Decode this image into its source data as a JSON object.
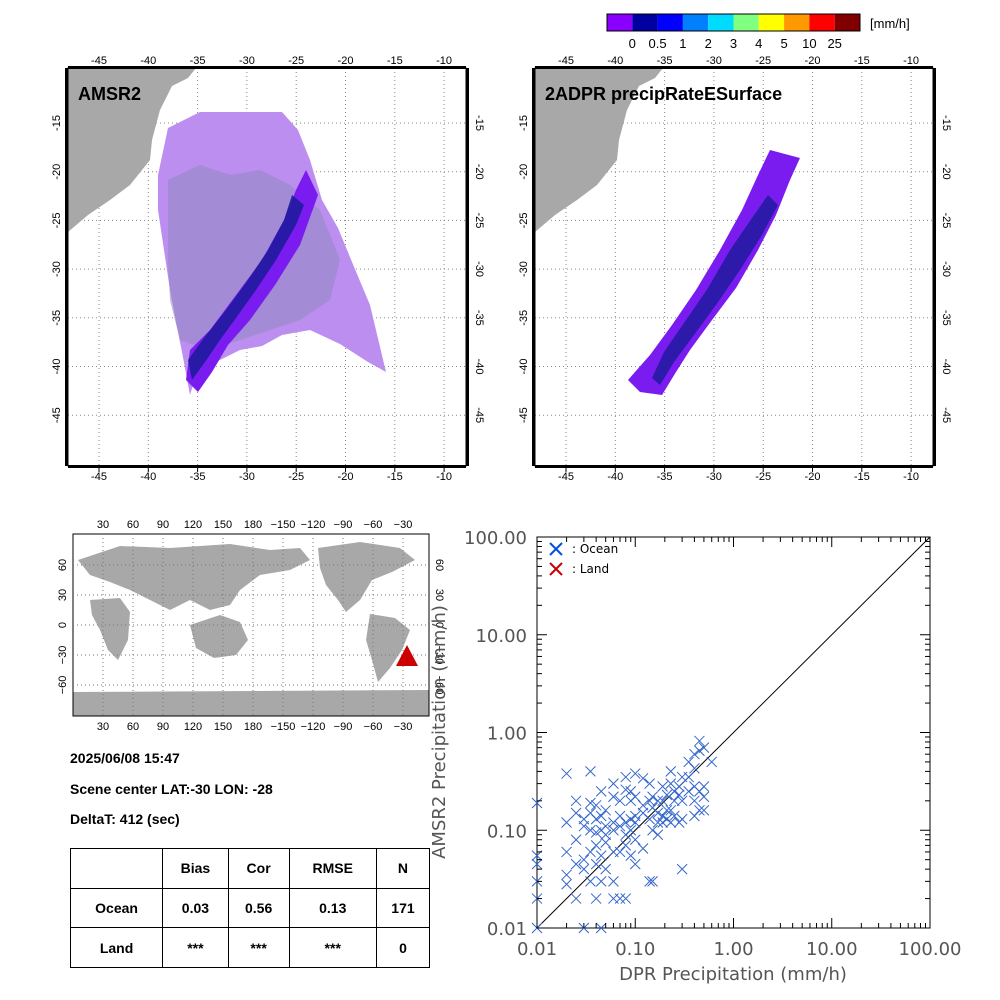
{
  "colorbar": {
    "unit": "[mm/h]",
    "colors": [
      "#8a00ff",
      "#0000a0",
      "#0000ff",
      "#0080ff",
      "#00dcff",
      "#80ff80",
      "#ffff00",
      "#ff9900",
      "#ff0000",
      "#800000"
    ],
    "labels": [
      "0",
      "0.5",
      "1",
      "2",
      "3",
      "4",
      "5",
      "10",
      "25"
    ]
  },
  "maps": {
    "amsr2_title": "AMSR2",
    "dpr_title": "2ADPR precipRateESurface",
    "lon_ticks": [
      "-45",
      "-40",
      "-35",
      "-30",
      "-25",
      "-20",
      "-15",
      "-10"
    ],
    "lat_ticks": [
      "-15",
      "-20",
      "-25",
      "-30",
      "-35",
      "-40",
      "-45"
    ],
    "land_color": "#a8a8a8"
  },
  "globe": {
    "top_lon_ticks": [
      "30",
      "60",
      "90",
      "120",
      "150",
      "180",
      "−150",
      "−120",
      "−90",
      "−60",
      "−30"
    ],
    "bottom_lon_ticks": [
      "30",
      "60",
      "90",
      "120",
      "150",
      "180",
      "−150",
      "−120",
      "−90",
      "−60",
      "−30"
    ],
    "lat_ticks": [
      "60",
      "30",
      "0",
      "−30",
      "−60"
    ],
    "marker_color": "#cc0000"
  },
  "info": {
    "datetime": "2025/06/08 15:47",
    "scene_center": "Scene center LAT:-30   LON: -28",
    "delta_t": "DeltaT:  412 (sec)"
  },
  "stats_table": {
    "headers": [
      "",
      "Bias",
      "Cor",
      "RMSE",
      "N"
    ],
    "rows": [
      [
        "Ocean",
        "0.03",
        "0.56",
        "0.13",
        "171"
      ],
      [
        "Land",
        "***",
        "***",
        "***",
        "0"
      ]
    ]
  },
  "chart_data": {
    "type": "scatter",
    "xlabel": "DPR Precipitation (mm/h)",
    "ylabel": "AMSR2 Precipitation (mm/h)",
    "xscale": "log",
    "yscale": "log",
    "xlim": [
      0.01,
      100
    ],
    "ylim": [
      0.01,
      100
    ],
    "x_tick_labels": [
      "0.01",
      "0.10",
      "1.00",
      "10.00",
      "100.00"
    ],
    "y_tick_labels": [
      "0.01",
      "0.10",
      "1.00",
      "10.00",
      "100.00"
    ],
    "legend": [
      {
        "name": ": Ocean",
        "color": "#0050e0"
      },
      {
        "name": ": Land",
        "color": "#cc0000"
      }
    ],
    "legend_position": "top-left",
    "one_to_one_line": true,
    "series": [
      {
        "name": "Ocean",
        "color": "#3366cc",
        "points": [
          [
            0.01,
            0.19
          ],
          [
            0.01,
            0.055
          ],
          [
            0.01,
            0.045
          ],
          [
            0.01,
            0.03
          ],
          [
            0.01,
            0.02
          ],
          [
            0.01,
            0.01
          ],
          [
            0.02,
            0.38
          ],
          [
            0.02,
            0.12
          ],
          [
            0.02,
            0.06
          ],
          [
            0.02,
            0.035
          ],
          [
            0.02,
            0.028
          ],
          [
            0.025,
            0.2
          ],
          [
            0.025,
            0.15
          ],
          [
            0.025,
            0.08
          ],
          [
            0.025,
            0.045
          ],
          [
            0.025,
            0.02
          ],
          [
            0.03,
            0.13
          ],
          [
            0.03,
            0.11
          ],
          [
            0.03,
            0.05
          ],
          [
            0.03,
            0.04
          ],
          [
            0.03,
            0.01
          ],
          [
            0.035,
            0.4
          ],
          [
            0.035,
            0.19
          ],
          [
            0.035,
            0.15
          ],
          [
            0.035,
            0.1
          ],
          [
            0.035,
            0.06
          ],
          [
            0.035,
            0.03
          ],
          [
            0.04,
            0.18
          ],
          [
            0.04,
            0.13
          ],
          [
            0.04,
            0.095
          ],
          [
            0.04,
            0.07
          ],
          [
            0.04,
            0.045
          ],
          [
            0.04,
            0.02
          ],
          [
            0.045,
            0.25
          ],
          [
            0.045,
            0.14
          ],
          [
            0.045,
            0.1
          ],
          [
            0.045,
            0.055
          ],
          [
            0.045,
            0.03
          ],
          [
            0.045,
            0.01
          ],
          [
            0.05,
            0.16
          ],
          [
            0.05,
            0.11
          ],
          [
            0.05,
            0.09
          ],
          [
            0.05,
            0.075
          ],
          [
            0.05,
            0.04
          ],
          [
            0.06,
            0.3
          ],
          [
            0.06,
            0.22
          ],
          [
            0.06,
            0.12
          ],
          [
            0.06,
            0.1
          ],
          [
            0.06,
            0.06
          ],
          [
            0.06,
            0.03
          ],
          [
            0.06,
            0.02
          ],
          [
            0.07,
            0.2
          ],
          [
            0.07,
            0.14
          ],
          [
            0.07,
            0.11
          ],
          [
            0.07,
            0.06
          ],
          [
            0.07,
            0.02
          ],
          [
            0.08,
            0.35
          ],
          [
            0.08,
            0.26
          ],
          [
            0.08,
            0.12
          ],
          [
            0.08,
            0.09
          ],
          [
            0.08,
            0.07
          ],
          [
            0.08,
            0.02
          ],
          [
            0.09,
            0.25
          ],
          [
            0.09,
            0.2
          ],
          [
            0.09,
            0.13
          ],
          [
            0.09,
            0.1
          ],
          [
            0.09,
            0.055
          ],
          [
            0.1,
            0.38
          ],
          [
            0.1,
            0.22
          ],
          [
            0.1,
            0.14
          ],
          [
            0.1,
            0.12
          ],
          [
            0.1,
            0.08
          ],
          [
            0.1,
            0.045
          ],
          [
            0.12,
            0.34
          ],
          [
            0.12,
            0.18
          ],
          [
            0.12,
            0.15
          ],
          [
            0.12,
            0.065
          ],
          [
            0.14,
            0.3
          ],
          [
            0.14,
            0.2
          ],
          [
            0.14,
            0.13
          ],
          [
            0.14,
            0.03
          ],
          [
            0.15,
            0.22
          ],
          [
            0.15,
            0.17
          ],
          [
            0.15,
            0.1
          ],
          [
            0.15,
            0.03
          ],
          [
            0.17,
            0.2
          ],
          [
            0.17,
            0.15
          ],
          [
            0.17,
            0.12
          ],
          [
            0.17,
            0.09
          ],
          [
            0.19,
            0.28
          ],
          [
            0.19,
            0.2
          ],
          [
            0.19,
            0.14
          ],
          [
            0.19,
            0.12
          ],
          [
            0.21,
            0.23
          ],
          [
            0.21,
            0.16
          ],
          [
            0.21,
            0.13
          ],
          [
            0.23,
            0.4
          ],
          [
            0.23,
            0.3
          ],
          [
            0.23,
            0.16
          ],
          [
            0.23,
            0.12
          ],
          [
            0.25,
            0.25
          ],
          [
            0.25,
            0.2
          ],
          [
            0.25,
            0.14
          ],
          [
            0.28,
            0.28
          ],
          [
            0.28,
            0.23
          ],
          [
            0.28,
            0.12
          ],
          [
            0.3,
            0.35
          ],
          [
            0.3,
            0.2
          ],
          [
            0.3,
            0.13
          ],
          [
            0.3,
            0.04
          ],
          [
            0.35,
            0.5
          ],
          [
            0.35,
            0.35
          ],
          [
            0.35,
            0.25
          ],
          [
            0.4,
            0.6
          ],
          [
            0.4,
            0.43
          ],
          [
            0.4,
            0.28
          ],
          [
            0.4,
            0.2
          ],
          [
            0.4,
            0.14
          ],
          [
            0.45,
            0.82
          ],
          [
            0.45,
            0.65
          ],
          [
            0.45,
            0.25
          ],
          [
            0.45,
            0.16
          ],
          [
            0.5,
            0.7
          ],
          [
            0.5,
            0.28
          ],
          [
            0.5,
            0.22
          ],
          [
            0.5,
            0.16
          ],
          [
            0.6,
            0.5
          ]
        ]
      },
      {
        "name": "Land",
        "color": "#cc0000",
        "points": []
      }
    ]
  }
}
